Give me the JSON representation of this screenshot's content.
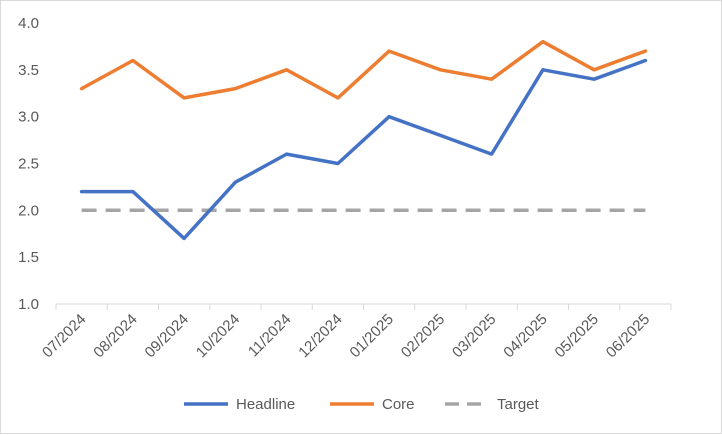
{
  "chart_data": {
    "type": "line",
    "categories": [
      "07/2024",
      "08/2024",
      "09/2024",
      "10/2024",
      "11/2024",
      "12/2024",
      "01/2025",
      "02/2025",
      "03/2025",
      "04/2025",
      "05/2025",
      "06/2025"
    ],
    "series": [
      {
        "name": "Headline",
        "values": [
          2.2,
          2.2,
          1.7,
          2.3,
          2.6,
          2.5,
          3.0,
          2.8,
          2.6,
          3.5,
          3.4,
          3.6
        ],
        "color": "#4472c4",
        "dash": "solid"
      },
      {
        "name": "Core",
        "values": [
          3.3,
          3.6,
          3.2,
          3.3,
          3.5,
          3.2,
          3.7,
          3.5,
          3.4,
          3.8,
          3.5,
          3.7
        ],
        "color": "#ed7d31",
        "dash": "solid"
      },
      {
        "name": "Target",
        "values": [
          2.0,
          2.0,
          2.0,
          2.0,
          2.0,
          2.0,
          2.0,
          2.0,
          2.0,
          2.0,
          2.0,
          2.0
        ],
        "color": "#a5a5a5",
        "dash": "dashed"
      }
    ],
    "yticks": [
      "1.0",
      "1.5",
      "2.0",
      "2.5",
      "3.0",
      "3.5",
      "4.0"
    ],
    "ylim": [
      1.0,
      4.0
    ],
    "title": "",
    "xlabel": "",
    "ylabel": "",
    "gridlines": false,
    "legend_position": "bottom",
    "colors": {
      "axis": "#d9d9d9",
      "text": "#595959"
    }
  }
}
